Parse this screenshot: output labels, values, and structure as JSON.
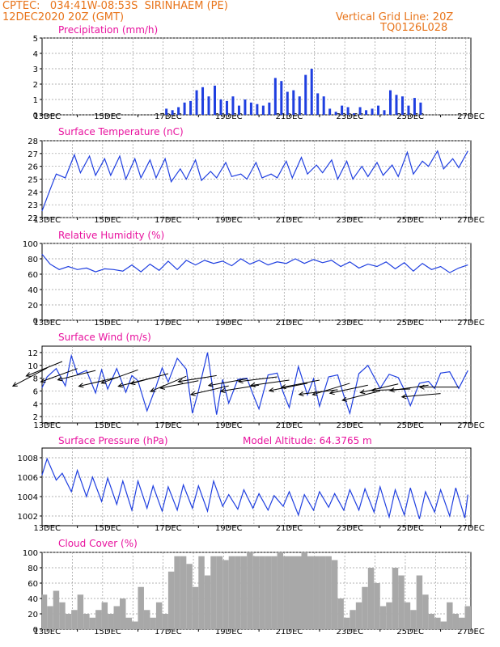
{
  "header": {
    "line1_left": "CPTEC:   034:41W-08:53S  SIRINHAEM (PE)",
    "line2_left": "12DEC2020 20Z (GMT)",
    "line1_right": "Vertical Grid Line: 20Z",
    "line2_right": "TQ0126L028"
  },
  "colors": {
    "header": "#e8741a",
    "title": "#e8129e",
    "series": "#1f3fe0",
    "cloud": "#a8a8a8",
    "grid": "#9a9a9a"
  },
  "x_axis": {
    "start": "2020-12-12T20:00Z",
    "end": "2020-12-27T00:00Z",
    "tick_labels": [
      "13DEC",
      "15DEC",
      "17DEC",
      "19DEC",
      "21DEC",
      "23DEC",
      "25DEC",
      "27DEC"
    ]
  },
  "chart_data": [
    {
      "type": "bar",
      "title": "Precipitation (mm/h)",
      "ylim": [
        0,
        5
      ],
      "yticks": [
        0,
        1,
        2,
        3,
        4,
        5
      ],
      "x": [
        "16.9",
        "17.1",
        "17.3",
        "17.5",
        "17.7",
        "17.9",
        "18.1",
        "18.3",
        "18.5",
        "18.7",
        "18.9",
        "19.1",
        "19.3",
        "19.5",
        "19.7",
        "19.9",
        "20.1",
        "20.3",
        "20.5",
        "20.7",
        "20.9",
        "21.1",
        "21.3",
        "21.5",
        "21.7",
        "21.9",
        "22.1",
        "22.3",
        "22.5",
        "22.7",
        "22.9",
        "23.1",
        "23.3",
        "23.5",
        "23.7",
        "23.9",
        "24.1",
        "24.3",
        "24.5",
        "24.7",
        "24.9",
        "25.1",
        "25.3"
      ],
      "values": [
        0.4,
        0.3,
        0.5,
        0.8,
        0.9,
        1.6,
        1.8,
        1.2,
        1.9,
        1.0,
        0.9,
        1.2,
        0.6,
        1.0,
        0.8,
        0.7,
        0.6,
        0.8,
        2.4,
        2.2,
        1.5,
        1.6,
        1.2,
        2.6,
        3.0,
        1.4,
        1.2,
        0.4,
        0.2,
        0.6,
        0.5,
        0.1,
        0.5,
        0.3,
        0.4,
        0.6,
        0.3,
        1.6,
        1.3,
        1.2,
        0.6,
        1.1,
        0.8
      ]
    },
    {
      "type": "line",
      "title": "Surface Temperature (nC)",
      "ylim": [
        22,
        28
      ],
      "yticks": [
        22,
        23,
        24,
        25,
        26,
        27,
        28
      ],
      "x": [
        12.83,
        13.1,
        13.3,
        13.6,
        13.9,
        14.1,
        14.4,
        14.6,
        14.9,
        15.1,
        15.4,
        15.6,
        15.9,
        16.1,
        16.4,
        16.6,
        16.9,
        17.1,
        17.4,
        17.6,
        17.9,
        18.1,
        18.4,
        18.6,
        18.9,
        19.1,
        19.4,
        19.6,
        19.9,
        20.1,
        20.4,
        20.6,
        20.9,
        21.1,
        21.4,
        21.6,
        21.9,
        22.1,
        22.4,
        22.6,
        22.9,
        23.1,
        23.4,
        23.6,
        23.9,
        24.1,
        24.4,
        24.6,
        24.9,
        25.1,
        25.4,
        25.6,
        25.9,
        26.1,
        26.4,
        26.6,
        26.9
      ],
      "values": [
        22.5,
        24.2,
        25.4,
        25.1,
        26.9,
        25.5,
        26.8,
        25.3,
        26.6,
        25.3,
        26.8,
        25.0,
        26.6,
        25.1,
        26.5,
        25.1,
        26.6,
        24.8,
        25.8,
        25.0,
        26.5,
        24.9,
        25.6,
        25.1,
        26.3,
        25.2,
        25.4,
        25.0,
        26.3,
        25.1,
        25.4,
        25.1,
        26.4,
        25.1,
        26.7,
        25.4,
        26.1,
        25.5,
        26.5,
        25.0,
        26.4,
        25.0,
        26.0,
        25.2,
        26.3,
        25.3,
        26.1,
        25.2,
        27.1,
        25.4,
        26.4,
        26.0,
        27.2,
        25.8,
        26.6,
        25.9,
        27.2
      ]
    },
    {
      "type": "line",
      "title": "Relative Humidity (%)",
      "ylim": [
        0,
        100
      ],
      "yticks": [
        0,
        20,
        40,
        60,
        80,
        100
      ],
      "x": [
        12.83,
        13.1,
        13.4,
        13.7,
        14.0,
        14.3,
        14.6,
        14.9,
        15.2,
        15.5,
        15.8,
        16.1,
        16.4,
        16.7,
        17.0,
        17.3,
        17.6,
        17.9,
        18.2,
        18.5,
        18.8,
        19.1,
        19.4,
        19.7,
        20.0,
        20.3,
        20.6,
        20.9,
        21.2,
        21.5,
        21.8,
        22.1,
        22.4,
        22.7,
        23.0,
        23.3,
        23.6,
        23.9,
        24.2,
        24.5,
        24.8,
        25.1,
        25.4,
        25.7,
        26.0,
        26.3,
        26.6,
        26.9
      ],
      "values": [
        86,
        73,
        66,
        70,
        66,
        68,
        63,
        67,
        66,
        64,
        72,
        63,
        73,
        65,
        77,
        66,
        78,
        72,
        78,
        74,
        77,
        71,
        80,
        73,
        78,
        72,
        76,
        74,
        80,
        74,
        79,
        75,
        78,
        70,
        76,
        68,
        73,
        70,
        76,
        67,
        75,
        64,
        74,
        66,
        70,
        62,
        68,
        72
      ]
    },
    {
      "type": "line",
      "title": "Surface Wind (m/s)",
      "ylim": [
        1,
        13
      ],
      "yticks": [
        2,
        4,
        6,
        8,
        10,
        12
      ],
      "x": [
        12.83,
        13.0,
        13.3,
        13.6,
        13.8,
        14.0,
        14.3,
        14.6,
        14.8,
        15.0,
        15.3,
        15.6,
        15.8,
        16.0,
        16.3,
        16.6,
        16.8,
        17.0,
        17.3,
        17.6,
        17.8,
        18.0,
        18.3,
        18.6,
        18.8,
        19.0,
        19.3,
        19.6,
        19.8,
        20.0,
        20.3,
        20.6,
        20.8,
        21.0,
        21.3,
        21.6,
        21.8,
        22.0,
        22.3,
        22.6,
        22.8,
        23.0,
        23.3,
        23.6,
        23.8,
        24.0,
        24.3,
        24.6,
        24.8,
        25.0,
        25.3,
        25.6,
        25.8,
        26.0,
        26.3,
        26.6,
        26.9
      ],
      "values": [
        6.5,
        8.2,
        9.5,
        6.8,
        11.5,
        8.6,
        9.2,
        5.7,
        9.3,
        6.3,
        9.5,
        5.8,
        8.4,
        7.6,
        2.9,
        6.7,
        9.6,
        7.4,
        11.1,
        9.4,
        2.5,
        6.0,
        12.0,
        2.3,
        7.8,
        4.1,
        7.8,
        8.0,
        5.5,
        3.2,
        8.5,
        8.8,
        5.8,
        3.4,
        9.8,
        5.4,
        7.9,
        3.6,
        8.2,
        8.5,
        5.3,
        2.5,
        8.7,
        10.0,
        8.2,
        6.4,
        8.6,
        8.1,
        6.2,
        3.7,
        7.2,
        7.5,
        6.4,
        8.8,
        9.0,
        6.4,
        9.2
      ],
      "arrows": {
        "x": [
          13.0,
          13.5,
          14.0,
          14.6,
          15.3,
          16.0,
          16.6,
          17.0,
          17.6,
          18.0,
          18.6,
          19.0,
          19.6,
          20.0,
          20.6,
          21.0,
          21.6,
          22.0,
          22.6,
          23.0,
          23.6,
          24.0,
          24.6,
          25.0,
          25.6,
          26.0,
          26.6
        ],
        "speed": [
          9.6,
          10.6,
          9.5,
          9.2,
          8.1,
          9.3,
          8.2,
          8.7,
          8.3,
          7.6,
          8.4,
          6.8,
          7.9,
          6.9,
          8.2,
          7.7,
          7.2,
          7.7,
          6.2,
          7.2,
          6.9,
          6.0,
          7.1,
          6.3,
          6.9,
          5.6,
          6.6
        ],
        "dir_deg": [
          118,
          112,
          110,
          104,
          103,
          110,
          104,
          105,
          113,
          101,
          99,
          103,
          100,
          99,
          97,
          98,
          101,
          101,
          97,
          107,
          102,
          104,
          103,
          92,
          98,
          95,
          90
        ]
      }
    },
    {
      "type": "line",
      "title": "Surface Pressure (hPa)",
      "annotation": "Model Altitude: 64.3765 m",
      "ylim": [
        1001,
        1009
      ],
      "yticks": [
        1002,
        1004,
        1006,
        1008
      ],
      "x": [
        12.83,
        13.0,
        13.3,
        13.5,
        13.8,
        14.0,
        14.3,
        14.5,
        14.8,
        15.0,
        15.3,
        15.5,
        15.8,
        16.0,
        16.3,
        16.5,
        16.8,
        17.0,
        17.3,
        17.5,
        17.8,
        18.0,
        18.3,
        18.5,
        18.8,
        19.0,
        19.3,
        19.5,
        19.8,
        20.0,
        20.3,
        20.5,
        20.8,
        21.0,
        21.3,
        21.5,
        21.8,
        22.0,
        22.3,
        22.5,
        22.8,
        23.0,
        23.3,
        23.5,
        23.8,
        24.0,
        24.3,
        24.5,
        24.8,
        25.0,
        25.3,
        25.5,
        25.8,
        26.0,
        26.3,
        26.5,
        26.8,
        26.9
      ],
      "values": [
        1006.2,
        1007.9,
        1005.7,
        1006.4,
        1004.5,
        1006.7,
        1004.0,
        1006.0,
        1003.5,
        1005.9,
        1003.2,
        1005.6,
        1002.6,
        1005.6,
        1002.8,
        1005.1,
        1002.5,
        1005.0,
        1002.6,
        1005.2,
        1002.8,
        1005.1,
        1002.5,
        1005.6,
        1003.0,
        1004.2,
        1002.7,
        1004.7,
        1002.8,
        1004.3,
        1002.6,
        1004.1,
        1003.0,
        1004.5,
        1002.1,
        1004.2,
        1002.6,
        1004.5,
        1002.9,
        1004.3,
        1002.6,
        1004.7,
        1002.6,
        1004.8,
        1002.4,
        1005.0,
        1001.9,
        1004.7,
        1002.1,
        1004.9,
        1001.7,
        1004.5,
        1002.4,
        1004.7,
        1002.0,
        1004.9,
        1001.8,
        1004.2
      ]
    },
    {
      "type": "bar",
      "title": "Cloud Cover (%)",
      "ylim": [
        0,
        100
      ],
      "yticks": [
        0,
        20,
        40,
        60,
        80,
        100
      ],
      "x": [
        12.83,
        13.0,
        13.2,
        13.4,
        13.6,
        13.8,
        14.0,
        14.2,
        14.4,
        14.6,
        14.8,
        15.0,
        15.2,
        15.4,
        15.6,
        15.8,
        16.0,
        16.2,
        16.4,
        16.6,
        16.8,
        17.0,
        17.2,
        17.4,
        17.6,
        17.8,
        18.0,
        18.2,
        18.4,
        18.6,
        18.8,
        19.0,
        19.2,
        19.4,
        19.6,
        19.8,
        20.0,
        20.2,
        20.4,
        20.6,
        20.8,
        21.0,
        21.2,
        21.4,
        21.6,
        21.8,
        22.0,
        22.2,
        22.4,
        22.6,
        22.8,
        23.0,
        23.2,
        23.4,
        23.6,
        23.8,
        24.0,
        24.2,
        24.4,
        24.6,
        24.8,
        25.0,
        25.2,
        25.4,
        25.6,
        25.8,
        26.0,
        26.2,
        26.4,
        26.6,
        26.8
      ],
      "values": [
        45,
        30,
        50,
        35,
        20,
        25,
        45,
        20,
        15,
        25,
        35,
        20,
        30,
        40,
        15,
        10,
        55,
        25,
        15,
        35,
        20,
        75,
        95,
        95,
        85,
        55,
        95,
        70,
        95,
        95,
        90,
        95,
        95,
        95,
        100,
        95,
        95,
        95,
        95,
        100,
        95,
        95,
        95,
        100,
        95,
        95,
        95,
        95,
        90,
        40,
        15,
        25,
        35,
        55,
        80,
        60,
        30,
        35,
        80,
        70,
        35,
        25,
        70,
        45,
        20,
        15,
        10,
        35,
        20,
        15,
        30
      ]
    }
  ]
}
